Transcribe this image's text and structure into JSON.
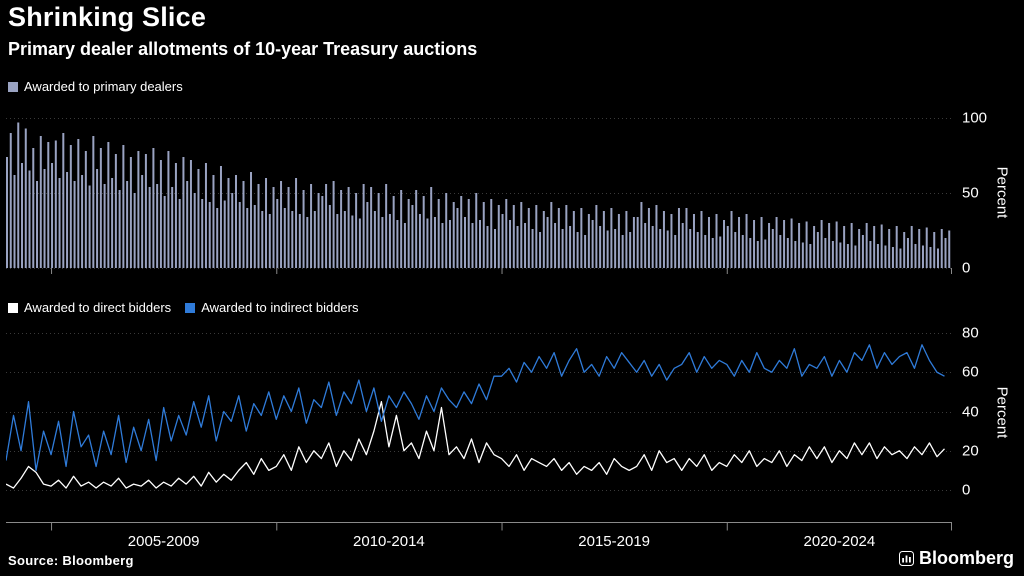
{
  "title": "Shrinking Slice",
  "subtitle": "Primary dealer allotments of 10-year Treasury auctions",
  "source": "Source:  Bloomberg",
  "brand": "Bloomberg",
  "colors": {
    "background": "#000000",
    "bar": "#9aa3c2",
    "direct": "#ffffff",
    "indirect": "#2f7bd9",
    "text": "#ffffff",
    "grid": "#3a3a3a",
    "axis": "#8a8a8a"
  },
  "xaxis": {
    "tick_years": [
      2005,
      2010,
      2015,
      2020,
      2025
    ],
    "labels": [
      "2005-2009",
      "2010-2014",
      "2015-2019",
      "2020-2024"
    ]
  },
  "chart_data": [
    {
      "type": "bar",
      "name": "Awarded to primary dealers",
      "ylabel": "Percent",
      "yticks": [
        0,
        50,
        100
      ],
      "ylim": [
        0,
        108
      ],
      "x_range": [
        2004,
        2025
      ],
      "points_per_year": 12,
      "values": [
        74,
        90,
        62,
        97,
        70,
        93,
        65,
        80,
        58,
        88,
        66,
        84,
        70,
        85,
        60,
        90,
        64,
        82,
        58,
        86,
        62,
        78,
        55,
        88,
        66,
        80,
        56,
        84,
        60,
        76,
        52,
        82,
        58,
        74,
        50,
        78,
        62,
        76,
        54,
        80,
        56,
        72,
        48,
        78,
        54,
        70,
        46,
        74,
        58,
        72,
        50,
        66,
        46,
        70,
        44,
        62,
        40,
        68,
        45,
        60,
        50,
        62,
        44,
        58,
        40,
        64,
        42,
        56,
        38,
        60,
        36,
        54,
        46,
        58,
        40,
        54,
        38,
        60,
        36,
        52,
        34,
        56,
        38,
        50,
        48,
        56,
        42,
        58,
        36,
        52,
        38,
        54,
        35,
        50,
        33,
        56,
        44,
        54,
        38,
        50,
        34,
        56,
        36,
        48,
        32,
        52,
        30,
        46,
        42,
        52,
        36,
        48,
        33,
        54,
        34,
        46,
        30,
        50,
        32,
        44,
        40,
        48,
        34,
        46,
        30,
        50,
        32,
        44,
        28,
        46,
        26,
        42,
        36,
        46,
        32,
        42,
        28,
        44,
        30,
        40,
        26,
        42,
        24,
        38,
        34,
        44,
        30,
        40,
        26,
        42,
        28,
        38,
        24,
        40,
        22,
        36,
        32,
        42,
        28,
        38,
        25,
        40,
        26,
        36,
        22,
        38,
        24,
        34,
        34,
        44,
        30,
        40,
        28,
        42,
        26,
        38,
        25,
        36,
        22,
        40,
        30,
        40,
        26,
        36,
        24,
        38,
        22,
        34,
        20,
        36,
        21,
        32,
        28,
        38,
        24,
        34,
        22,
        36,
        20,
        32,
        18,
        34,
        19,
        30,
        26,
        34,
        22,
        32,
        20,
        33,
        18,
        30,
        17,
        31,
        16,
        28,
        24,
        32,
        20,
        30,
        18,
        31,
        17,
        28,
        16,
        30,
        15,
        26,
        22,
        30,
        18,
        28,
        16,
        29,
        15,
        26,
        14,
        28,
        13,
        24,
        20,
        28,
        16,
        26,
        15,
        27,
        14,
        24,
        13,
        26,
        20,
        25
      ]
    },
    {
      "type": "line",
      "ylabel": "Percent",
      "yticks": [
        0,
        20,
        40,
        60,
        80
      ],
      "ylim": [
        -17,
        84
      ],
      "x_range": [
        2004,
        2025
      ],
      "points_per_year": 6,
      "series": [
        {
          "name": "Awarded to direct bidders",
          "color_key": "direct",
          "values": [
            3,
            1,
            6,
            12,
            9,
            3,
            2,
            5,
            1,
            7,
            2,
            4,
            1,
            4,
            2,
            6,
            1,
            3,
            2,
            5,
            1,
            4,
            2,
            6,
            3,
            7,
            2,
            9,
            4,
            8,
            5,
            10,
            14,
            8,
            16,
            10,
            12,
            18,
            10,
            22,
            14,
            20,
            16,
            24,
            12,
            20,
            15,
            26,
            18,
            30,
            45,
            22,
            38,
            20,
            24,
            16,
            30,
            20,
            42,
            18,
            22,
            16,
            26,
            14,
            24,
            18,
            16,
            12,
            18,
            10,
            16,
            14,
            12,
            16,
            10,
            14,
            8,
            12,
            10,
            14,
            8,
            16,
            12,
            10,
            12,
            18,
            10,
            20,
            14,
            16,
            10,
            16,
            12,
            18,
            10,
            14,
            12,
            18,
            14,
            20,
            12,
            16,
            14,
            20,
            12,
            18,
            15,
            22,
            16,
            22,
            14,
            20,
            16,
            24,
            18,
            24,
            16,
            22,
            18,
            20,
            16,
            22,
            18,
            24,
            17,
            21
          ]
        },
        {
          "name": "Awarded to indirect bidders",
          "color_key": "indirect",
          "values": [
            15,
            38,
            20,
            45,
            10,
            30,
            18,
            35,
            12,
            40,
            22,
            28,
            12,
            30,
            18,
            38,
            14,
            32,
            20,
            36,
            15,
            42,
            25,
            38,
            28,
            45,
            32,
            48,
            25,
            40,
            35,
            48,
            30,
            44,
            38,
            50,
            36,
            48,
            40,
            52,
            34,
            46,
            42,
            55,
            38,
            50,
            44,
            56,
            40,
            52,
            35,
            48,
            42,
            50,
            44,
            36,
            48,
            40,
            52,
            46,
            42,
            50,
            44,
            54,
            46,
            58,
            58,
            62,
            55,
            65,
            60,
            68,
            62,
            70,
            58,
            66,
            72,
            60,
            64,
            58,
            68,
            62,
            70,
            65,
            60,
            66,
            58,
            64,
            56,
            62,
            64,
            70,
            60,
            68,
            62,
            66,
            64,
            58,
            66,
            60,
            70,
            62,
            60,
            66,
            62,
            72,
            58,
            64,
            62,
            68,
            58,
            66,
            60,
            70,
            66,
            74,
            62,
            70,
            64,
            68,
            70,
            62,
            74,
            66,
            60,
            58
          ]
        }
      ]
    }
  ]
}
